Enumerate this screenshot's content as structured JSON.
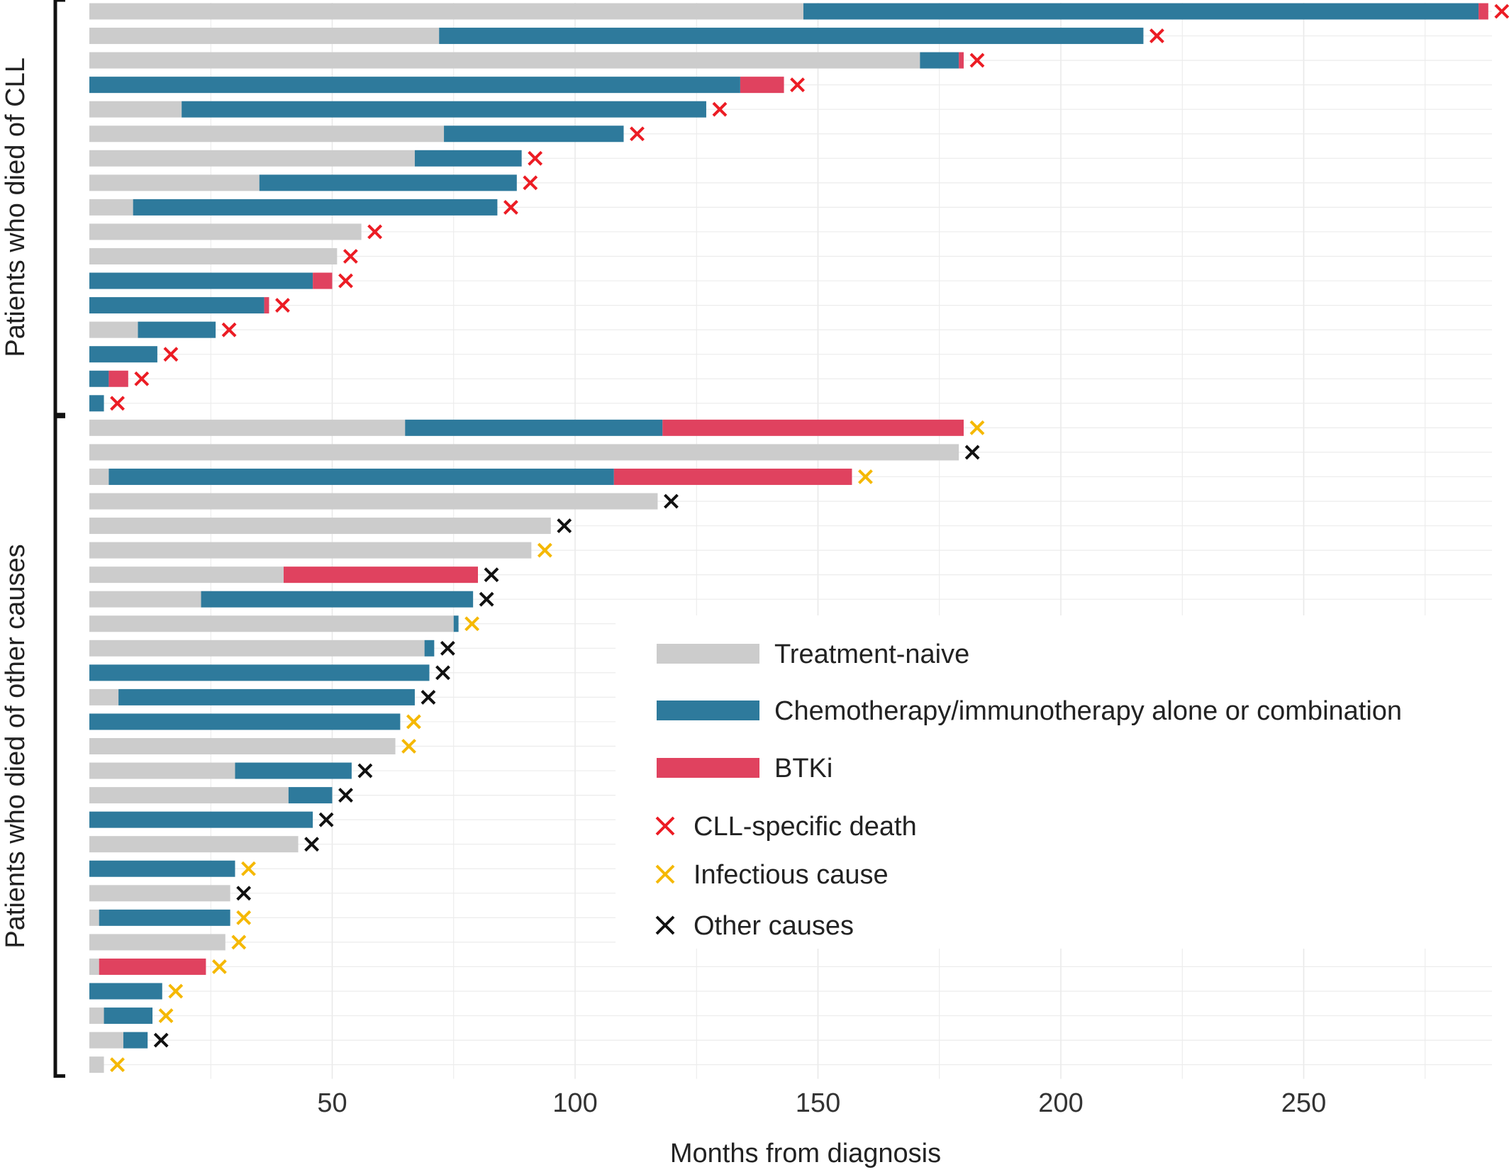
{
  "chart_data": {
    "type": "bar",
    "orientation": "horizontal",
    "stacked": true,
    "title": "",
    "xlabel": "Months from diagnosis",
    "ylabel": "",
    "xlim": [
      0,
      290
    ],
    "xticks": [
      50,
      100,
      150,
      200,
      250
    ],
    "grid": true,
    "legend_position": "center-right",
    "groups": [
      {
        "label": "Patients who died of CLL",
        "first_row": 0,
        "last_row": 16
      },
      {
        "label": "Patients who died of other causes",
        "first_row": 17,
        "last_row": 43
      }
    ],
    "segment_types": [
      {
        "key": "naive",
        "name": "Treatment-naive",
        "color": "#cccccc"
      },
      {
        "key": "chemo",
        "name": "Chemotherapy/immunotherapy alone or combination",
        "color": "#2e7a9c"
      },
      {
        "key": "btki",
        "name": "BTKi",
        "color": "#e0425f"
      }
    ],
    "death_types": [
      {
        "key": "cll",
        "name": "CLL-specific death",
        "color": "#ec1c24"
      },
      {
        "key": "inf",
        "name": "Infectious cause",
        "color": "#f5b800"
      },
      {
        "key": "oth",
        "name": "Other causes",
        "color": "#111111"
      }
    ],
    "patients": [
      {
        "segments": [
          [
            "naive",
            0,
            147
          ],
          [
            "chemo",
            147,
            286
          ],
          [
            "btki",
            286,
            288
          ]
        ],
        "death": "cll",
        "death_month": 288
      },
      {
        "segments": [
          [
            "naive",
            0,
            72
          ],
          [
            "chemo",
            72,
            217
          ]
        ],
        "death": "cll",
        "death_month": 217
      },
      {
        "segments": [
          [
            "naive",
            0,
            171
          ],
          [
            "chemo",
            171,
            179
          ],
          [
            "btki",
            179,
            180
          ]
        ],
        "death": "cll",
        "death_month": 180
      },
      {
        "segments": [
          [
            "chemo",
            0,
            134
          ],
          [
            "btki",
            134,
            143
          ]
        ],
        "death": "cll",
        "death_month": 143
      },
      {
        "segments": [
          [
            "naive",
            0,
            19
          ],
          [
            "chemo",
            19,
            127
          ]
        ],
        "death": "cll",
        "death_month": 127
      },
      {
        "segments": [
          [
            "naive",
            0,
            73
          ],
          [
            "chemo",
            73,
            110
          ]
        ],
        "death": "cll",
        "death_month": 110
      },
      {
        "segments": [
          [
            "naive",
            0,
            67
          ],
          [
            "chemo",
            67,
            89
          ]
        ],
        "death": "cll",
        "death_month": 89
      },
      {
        "segments": [
          [
            "naive",
            0,
            35
          ],
          [
            "chemo",
            35,
            88
          ]
        ],
        "death": "cll",
        "death_month": 88
      },
      {
        "segments": [
          [
            "naive",
            0,
            9
          ],
          [
            "chemo",
            9,
            84
          ]
        ],
        "death": "cll",
        "death_month": 84
      },
      {
        "segments": [
          [
            "naive",
            0,
            56
          ]
        ],
        "death": "cll",
        "death_month": 56
      },
      {
        "segments": [
          [
            "naive",
            0,
            51
          ]
        ],
        "death": "cll",
        "death_month": 51
      },
      {
        "segments": [
          [
            "chemo",
            0,
            46
          ],
          [
            "btki",
            46,
            50
          ]
        ],
        "death": "cll",
        "death_month": 50
      },
      {
        "segments": [
          [
            "chemo",
            0,
            36
          ],
          [
            "btki",
            36,
            37
          ]
        ],
        "death": "cll",
        "death_month": 37
      },
      {
        "segments": [
          [
            "naive",
            0,
            10
          ],
          [
            "chemo",
            10,
            26
          ]
        ],
        "death": "cll",
        "death_month": 26
      },
      {
        "segments": [
          [
            "chemo",
            0,
            14
          ]
        ],
        "death": "cll",
        "death_month": 14
      },
      {
        "segments": [
          [
            "chemo",
            0,
            4
          ],
          [
            "btki",
            4,
            8
          ]
        ],
        "death": "cll",
        "death_month": 8
      },
      {
        "segments": [
          [
            "chemo",
            0,
            3
          ]
        ],
        "death": "cll",
        "death_month": 3
      },
      {
        "segments": [
          [
            "naive",
            0,
            65
          ],
          [
            "chemo",
            65,
            118
          ],
          [
            "btki",
            118,
            180
          ]
        ],
        "death": "inf",
        "death_month": 180
      },
      {
        "segments": [
          [
            "naive",
            0,
            179
          ]
        ],
        "death": "oth",
        "death_month": 179
      },
      {
        "segments": [
          [
            "naive",
            0,
            4
          ],
          [
            "chemo",
            4,
            108
          ],
          [
            "btki",
            108,
            157
          ]
        ],
        "death": "inf",
        "death_month": 157
      },
      {
        "segments": [
          [
            "naive",
            0,
            117
          ]
        ],
        "death": "oth",
        "death_month": 117
      },
      {
        "segments": [
          [
            "naive",
            0,
            95
          ]
        ],
        "death": "oth",
        "death_month": 95
      },
      {
        "segments": [
          [
            "naive",
            0,
            91
          ]
        ],
        "death": "inf",
        "death_month": 91
      },
      {
        "segments": [
          [
            "naive",
            0,
            40
          ],
          [
            "btki",
            40,
            80
          ]
        ],
        "death": "oth",
        "death_month": 80
      },
      {
        "segments": [
          [
            "naive",
            0,
            23
          ],
          [
            "chemo",
            23,
            79
          ]
        ],
        "death": "oth",
        "death_month": 79
      },
      {
        "segments": [
          [
            "naive",
            0,
            75
          ],
          [
            "chemo",
            75,
            76
          ]
        ],
        "death": "inf",
        "death_month": 76
      },
      {
        "segments": [
          [
            "naive",
            0,
            69
          ],
          [
            "chemo",
            69,
            71
          ]
        ],
        "death": "oth",
        "death_month": 71
      },
      {
        "segments": [
          [
            "chemo",
            0,
            70
          ]
        ],
        "death": "oth",
        "death_month": 70
      },
      {
        "segments": [
          [
            "naive",
            0,
            6
          ],
          [
            "chemo",
            6,
            67
          ]
        ],
        "death": "oth",
        "death_month": 67
      },
      {
        "segments": [
          [
            "chemo",
            0,
            64
          ]
        ],
        "death": "inf",
        "death_month": 64
      },
      {
        "segments": [
          [
            "naive",
            0,
            63
          ]
        ],
        "death": "inf",
        "death_month": 63
      },
      {
        "segments": [
          [
            "naive",
            0,
            30
          ],
          [
            "chemo",
            30,
            54
          ]
        ],
        "death": "oth",
        "death_month": 54
      },
      {
        "segments": [
          [
            "naive",
            0,
            41
          ],
          [
            "chemo",
            41,
            50
          ]
        ],
        "death": "oth",
        "death_month": 50
      },
      {
        "segments": [
          [
            "chemo",
            0,
            46
          ]
        ],
        "death": "oth",
        "death_month": 46
      },
      {
        "segments": [
          [
            "naive",
            0,
            43
          ]
        ],
        "death": "oth",
        "death_month": 43
      },
      {
        "segments": [
          [
            "chemo",
            0,
            30
          ]
        ],
        "death": "inf",
        "death_month": 30
      },
      {
        "segments": [
          [
            "naive",
            0,
            29
          ]
        ],
        "death": "oth",
        "death_month": 29
      },
      {
        "segments": [
          [
            "naive",
            0,
            2
          ],
          [
            "chemo",
            2,
            29
          ]
        ],
        "death": "inf",
        "death_month": 29
      },
      {
        "segments": [
          [
            "naive",
            0,
            28
          ]
        ],
        "death": "inf",
        "death_month": 28
      },
      {
        "segments": [
          [
            "naive",
            0,
            2
          ],
          [
            "btki",
            2,
            24
          ]
        ],
        "death": "inf",
        "death_month": 24
      },
      {
        "segments": [
          [
            "chemo",
            0,
            15
          ]
        ],
        "death": "inf",
        "death_month": 15
      },
      {
        "segments": [
          [
            "naive",
            0,
            3
          ],
          [
            "chemo",
            3,
            13
          ]
        ],
        "death": "inf",
        "death_month": 13
      },
      {
        "segments": [
          [
            "naive",
            0,
            7
          ],
          [
            "chemo",
            7,
            12
          ]
        ],
        "death": "oth",
        "death_month": 12
      },
      {
        "segments": [
          [
            "naive",
            0,
            3
          ]
        ],
        "death": "inf",
        "death_month": 3
      }
    ]
  }
}
